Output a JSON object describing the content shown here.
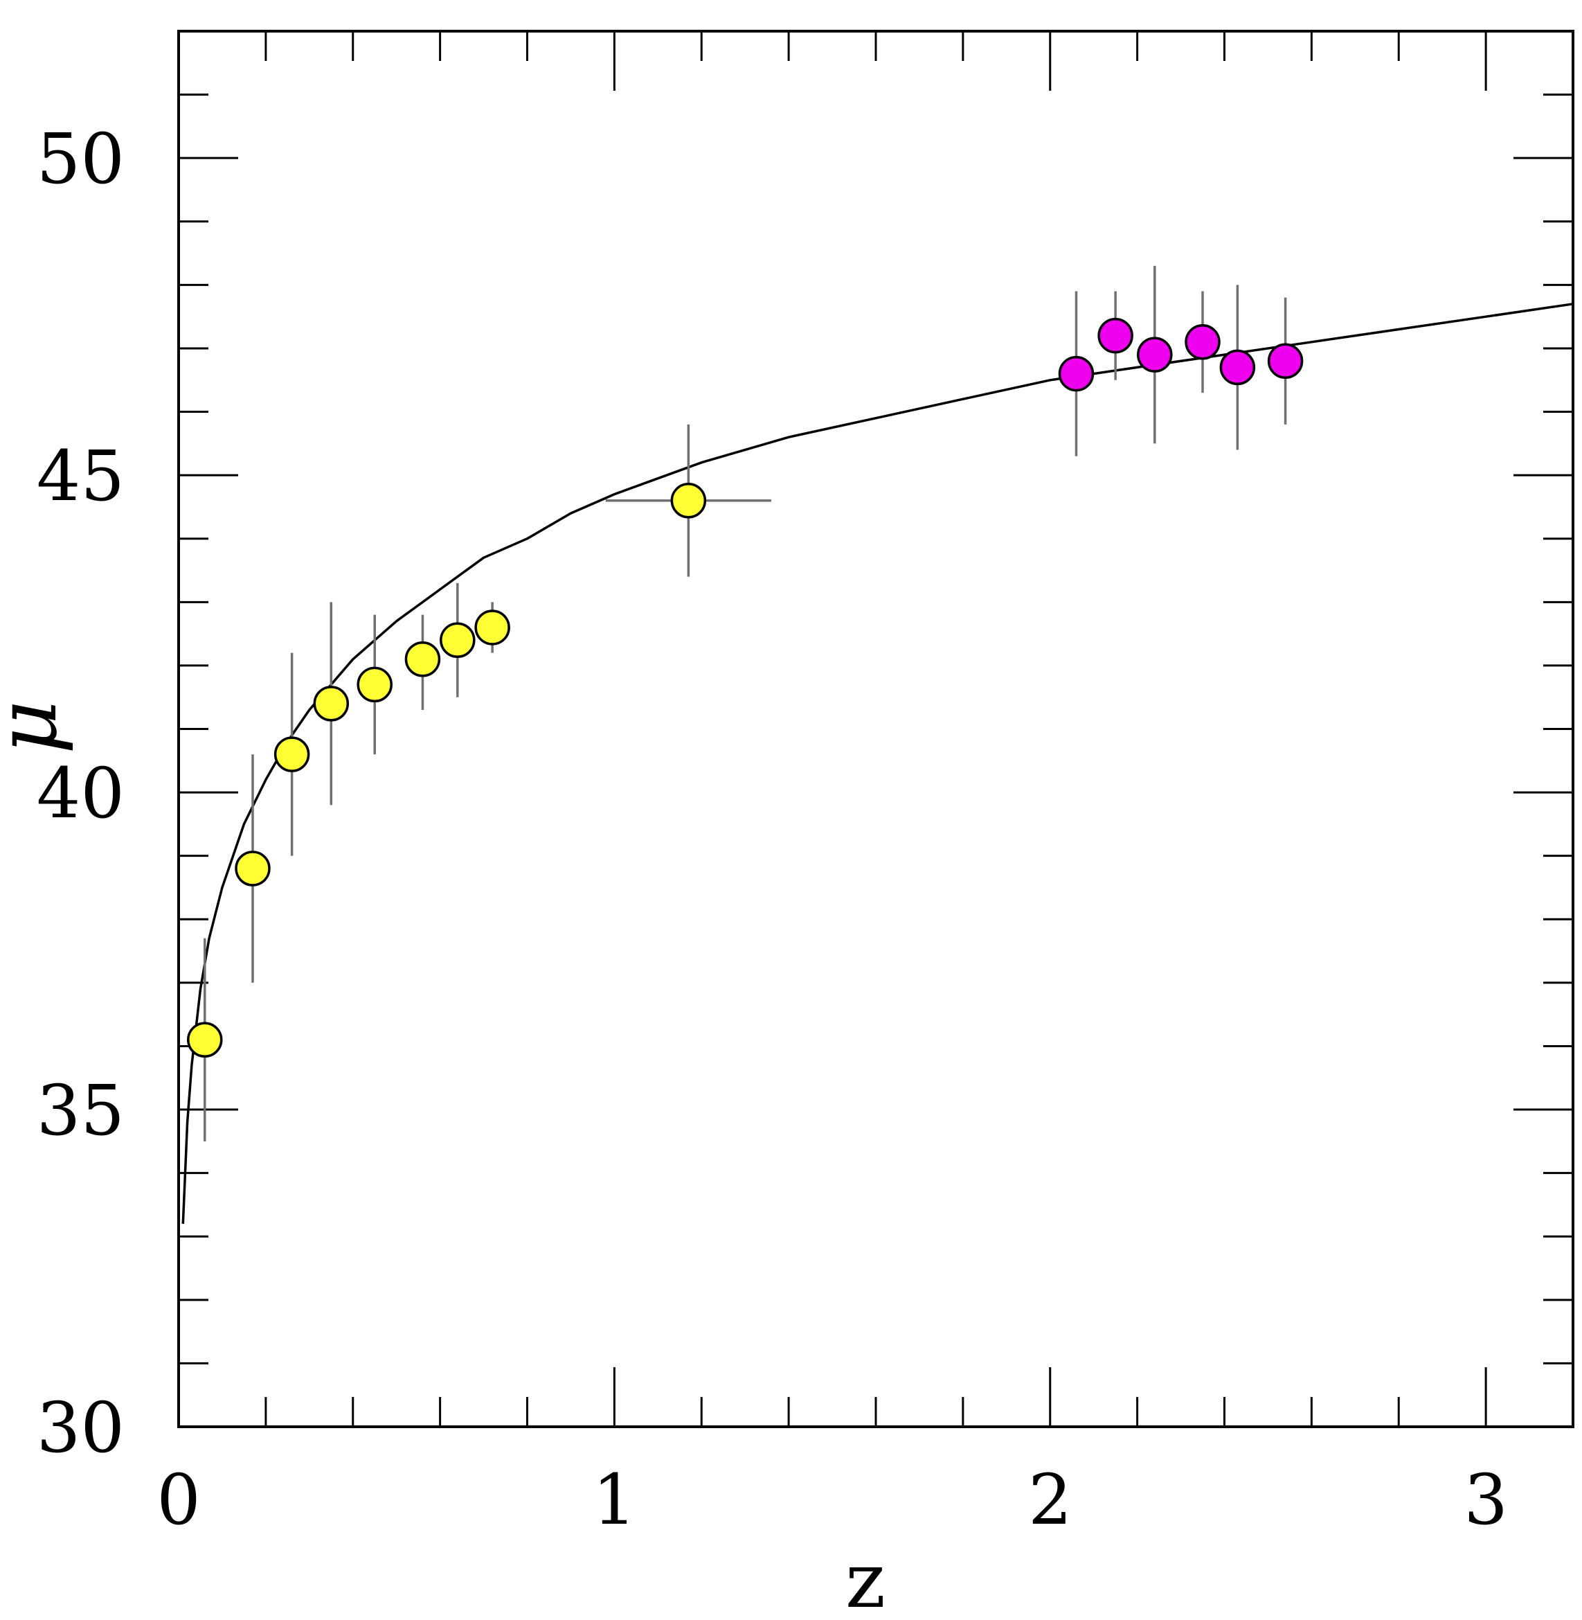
{
  "chart_data": {
    "type": "scatter",
    "title": "",
    "xlabel": "z",
    "ylabel": "μ",
    "xlim": [
      0,
      3.2
    ],
    "ylim": [
      30,
      52
    ],
    "x_ticks": [
      0,
      1,
      2,
      3
    ],
    "x_tick_labels": [
      "0",
      "1",
      "2",
      "3"
    ],
    "x_minor_step": 0.2,
    "y_ticks": [
      30,
      35,
      40,
      45,
      50
    ],
    "y_tick_labels": [
      "30",
      "35",
      "40",
      "45",
      "50"
    ],
    "y_minor_step": 1,
    "grid": false,
    "legend": "none",
    "colors": {
      "series_1": "#ffff33",
      "series_2": "#ee00ee",
      "error_bar": "#707070",
      "curve": "#000000",
      "frame": "#000000"
    },
    "series": [
      {
        "marker": "circle",
        "color": "#ffff33",
        "points": [
          {
            "x": 0.06,
            "y": 36.1,
            "yerr": [
              1.6,
              1.6
            ],
            "xerr": [
              0,
              0
            ]
          },
          {
            "x": 0.17,
            "y": 38.8,
            "yerr": [
              1.8,
              1.8
            ],
            "xerr": [
              0,
              0
            ]
          },
          {
            "x": 0.26,
            "y": 40.6,
            "yerr": [
              1.6,
              1.6
            ],
            "xerr": [
              0,
              0
            ]
          },
          {
            "x": 0.35,
            "y": 41.4,
            "yerr": [
              1.6,
              1.6
            ],
            "xerr": [
              0,
              0
            ]
          },
          {
            "x": 0.45,
            "y": 41.7,
            "yerr": [
              1.1,
              1.1
            ],
            "xerr": [
              0,
              0
            ]
          },
          {
            "x": 0.56,
            "y": 42.1,
            "yerr": [
              0.8,
              0.7
            ],
            "xerr": [
              0,
              0
            ]
          },
          {
            "x": 0.64,
            "y": 42.4,
            "yerr": [
              0.9,
              0.9
            ],
            "xerr": [
              0,
              0
            ]
          },
          {
            "x": 0.72,
            "y": 42.6,
            "yerr": [
              0.4,
              0.4
            ],
            "xerr": [
              0,
              0
            ]
          },
          {
            "x": 1.17,
            "y": 44.6,
            "yerr": [
              1.2,
              1.2
            ],
            "xerr": [
              0.19,
              0.19
            ]
          }
        ]
      },
      {
        "marker": "circle",
        "color": "#ee00ee",
        "points": [
          {
            "x": 2.06,
            "y": 46.6,
            "yerr": [
              1.3,
              1.3
            ],
            "xerr": [
              0,
              0
            ]
          },
          {
            "x": 2.15,
            "y": 47.2,
            "yerr": [
              0.7,
              0.7
            ],
            "xerr": [
              0,
              0
            ]
          },
          {
            "x": 2.24,
            "y": 46.9,
            "yerr": [
              1.4,
              1.4
            ],
            "xerr": [
              0,
              0
            ]
          },
          {
            "x": 2.35,
            "y": 47.1,
            "yerr": [
              0.8,
              0.8
            ],
            "xerr": [
              0,
              0
            ]
          },
          {
            "x": 2.43,
            "y": 46.7,
            "yerr": [
              1.3,
              1.3
            ],
            "xerr": [
              0,
              0
            ]
          },
          {
            "x": 2.54,
            "y": 46.8,
            "yerr": [
              1.0,
              1.0
            ],
            "xerr": [
              0,
              0
            ]
          }
        ]
      }
    ],
    "curve": {
      "x": [
        0.01,
        0.02,
        0.03,
        0.05,
        0.07,
        0.1,
        0.15,
        0.2,
        0.25,
        0.3,
        0.4,
        0.5,
        0.6,
        0.7,
        0.8,
        0.9,
        1.0,
        1.2,
        1.4,
        1.6,
        1.8,
        2.0,
        2.2,
        2.4,
        2.6,
        2.8,
        3.0,
        3.2
      ],
      "y": [
        33.2,
        34.8,
        35.7,
        36.9,
        37.7,
        38.5,
        39.5,
        40.2,
        40.8,
        41.3,
        42.1,
        42.7,
        43.2,
        43.7,
        44.0,
        44.4,
        44.7,
        45.2,
        45.6,
        45.9,
        46.2,
        46.5,
        46.7,
        46.9,
        47.1,
        47.3,
        47.5,
        47.7
      ]
    }
  }
}
